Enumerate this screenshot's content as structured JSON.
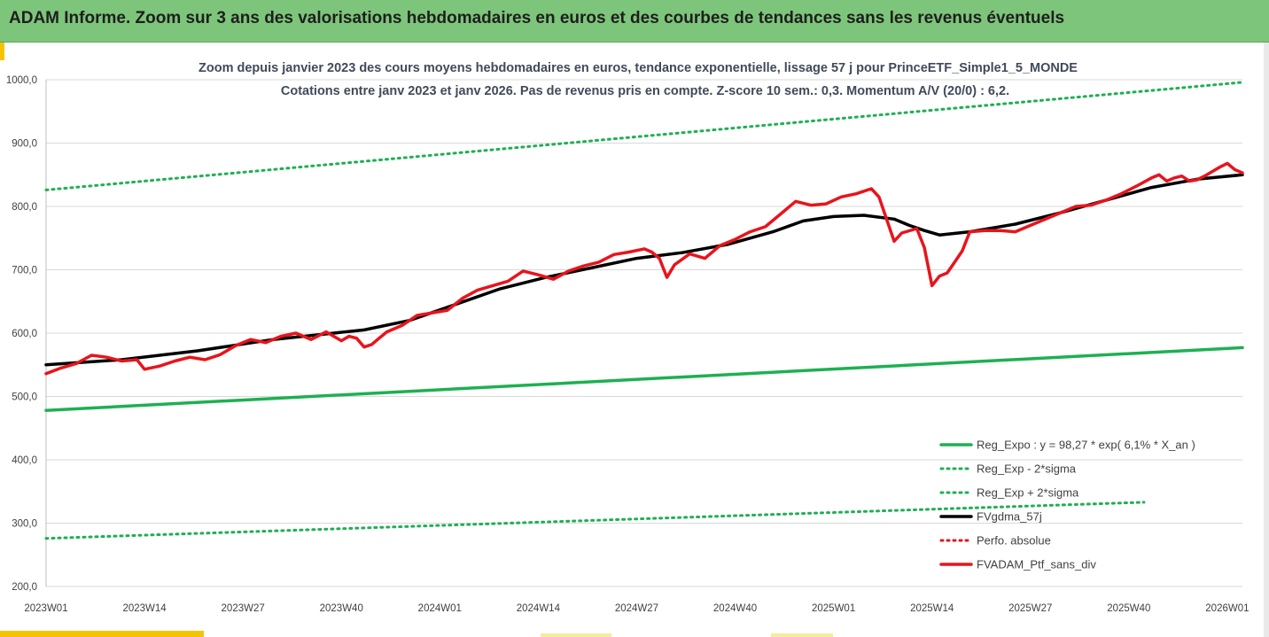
{
  "header": {
    "title": "ADAM Informe. Zoom sur 3 ans des valorisations hebdomadaires en euros et des courbes de tendances sans les revenus éventuels"
  },
  "colors": {
    "banner": "#7dc57a",
    "reg_expo": "#1eb053",
    "red_series": "#e8141c",
    "black_series": "#000000",
    "perfo": "#e8141c",
    "accent": "#f5c400"
  },
  "chart_data": {
    "type": "line",
    "title_lines": [
      "Zoom depuis janvier 2023 des cours moyens hebdomadaires  en euros, tendance exponentielle, lissage 57 j pour PrinceETF_Simple1_5_MONDE",
      "Cotations entre janv 2023 et janv 2026. Pas de revenus pris en compte. Z-score 10 sem.: 0,3. Momentum  A/V (20/0) : 6,2."
    ],
    "xlabel": "",
    "ylabel": "",
    "ylim": [
      200,
      1000
    ],
    "x_range": [
      0,
      158
    ],
    "y_ticks": [
      {
        "value": 200,
        "label": "200,0"
      },
      {
        "value": 300,
        "label": "300,0"
      },
      {
        "value": 400,
        "label": "400,0"
      },
      {
        "value": 500,
        "label": "500,0"
      },
      {
        "value": 600,
        "label": "600,0"
      },
      {
        "value": 700,
        "label": "700,0"
      },
      {
        "value": 800,
        "label": "800,0"
      },
      {
        "value": 900,
        "label": "900,0"
      },
      {
        "value": 1000,
        "label": "1000,0"
      }
    ],
    "x_ticks": [
      {
        "week": 0,
        "label": "2023W01"
      },
      {
        "week": 13,
        "label": "2023W14"
      },
      {
        "week": 26,
        "label": "2023W27"
      },
      {
        "week": 39,
        "label": "2023W40"
      },
      {
        "week": 52,
        "label": "2024W01"
      },
      {
        "week": 65,
        "label": "2024W14"
      },
      {
        "week": 78,
        "label": "2024W27"
      },
      {
        "week": 91,
        "label": "2024W40"
      },
      {
        "week": 104,
        "label": "2025W01"
      },
      {
        "week": 117,
        "label": "2025W14"
      },
      {
        "week": 130,
        "label": "2025W27"
      },
      {
        "week": 143,
        "label": "2025W40"
      },
      {
        "week": 156,
        "label": "2026W01"
      }
    ],
    "gridlines": "horizontal",
    "legend_position": "bottom-right",
    "series": [
      {
        "name": "Reg_Expo : y = 98,27 * exp( 6,1% *  X_an )",
        "style": "solid",
        "color": "#1eb053",
        "width": 3.5,
        "x": [
          0,
          158
        ],
        "values": [
          478,
          577
        ]
      },
      {
        "name": "Reg_Exp - 2*sigma",
        "style": "dotted",
        "color": "#1eb053",
        "width": 3,
        "x": [
          0,
          145
        ],
        "values": [
          276,
          333
        ]
      },
      {
        "name": "Reg_Exp + 2*sigma",
        "style": "dotted",
        "color": "#1eb053",
        "width": 3,
        "x": [
          0,
          158
        ],
        "values": [
          826,
          996
        ]
      },
      {
        "name": "FVgdma_57j",
        "style": "solid",
        "color": "#000000",
        "width": 3.5,
        "x": [
          0,
          10,
          20,
          30,
          38,
          42,
          48,
          54,
          60,
          66,
          72,
          78,
          84,
          90,
          96,
          100,
          104,
          108,
          112,
          114,
          116,
          118,
          122,
          128,
          134,
          140,
          146,
          152,
          158
        ],
        "values": [
          550,
          558,
          572,
          590,
          600,
          605,
          620,
          645,
          670,
          688,
          703,
          718,
          727,
          740,
          760,
          777,
          784,
          786,
          780,
          770,
          762,
          755,
          760,
          772,
          790,
          810,
          830,
          843,
          850
        ]
      },
      {
        "name": "Perfo. absolue",
        "style": "dotted",
        "color": "#e8141c",
        "width": 3,
        "x": [],
        "values": []
      },
      {
        "name": "FVADAM_Ptf_sans_div",
        "style": "solid",
        "color": "#e8141c",
        "width": 3.5,
        "x": [
          0,
          2,
          4,
          6,
          8,
          10,
          12,
          13,
          15,
          17,
          19,
          21,
          23,
          25,
          27,
          29,
          31,
          33,
          35,
          37,
          39,
          40,
          41,
          42,
          43,
          44,
          45,
          47,
          49,
          51,
          53,
          55,
          57,
          59,
          61,
          63,
          65,
          67,
          69,
          71,
          73,
          75,
          77,
          79,
          80,
          81,
          82,
          83,
          85,
          87,
          89,
          91,
          93,
          95,
          97,
          99,
          101,
          103,
          105,
          107,
          109,
          110,
          112,
          113,
          115,
          116,
          117,
          118,
          119,
          120,
          121,
          122,
          124,
          126,
          128,
          130,
          132,
          134,
          136,
          138,
          140,
          142,
          144,
          146,
          147,
          148,
          149,
          150,
          151,
          152,
          153,
          154,
          155,
          156,
          157,
          158
        ],
        "values": [
          536,
          545,
          552,
          565,
          562,
          556,
          558,
          543,
          548,
          556,
          562,
          558,
          566,
          580,
          590,
          585,
          595,
          600,
          590,
          602,
          588,
          595,
          592,
          578,
          582,
          592,
          602,
          612,
          628,
          632,
          636,
          655,
          668,
          675,
          682,
          698,
          692,
          685,
          698,
          706,
          712,
          724,
          728,
          733,
          728,
          718,
          688,
          708,
          725,
          718,
          738,
          748,
          760,
          768,
          788,
          808,
          802,
          804,
          815,
          820,
          828,
          815,
          745,
          758,
          765,
          735,
          675,
          690,
          695,
          712,
          730,
          760,
          762,
          762,
          760,
          770,
          780,
          790,
          800,
          802,
          810,
          820,
          832,
          845,
          850,
          840,
          845,
          848,
          840,
          842,
          848,
          855,
          862,
          868,
          858,
          853
        ]
      }
    ]
  }
}
